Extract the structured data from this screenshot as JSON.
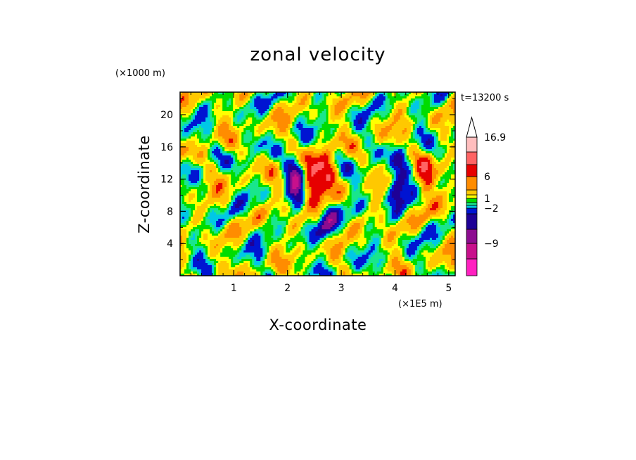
{
  "chart_data": {
    "type": "heatmap",
    "title": "zonal velocity",
    "xlabel": "X-coordinate",
    "ylabel": "Z-coordinate",
    "x_unit": "(×1E5 m)",
    "y_unit": "(×1000 m)",
    "time_label": "t=13200 s",
    "xlim": [
      0,
      5.12
    ],
    "ylim": [
      0,
      22.8
    ],
    "x_ticks": [
      "1",
      "2",
      "3",
      "4",
      "5"
    ],
    "y_ticks": [
      "4",
      "8",
      "12",
      "16",
      "20"
    ],
    "colorbar": {
      "labels": [
        "16.9",
        "6",
        "1",
        "-2",
        "-9"
      ],
      "levels": [
        -16,
        -12,
        -9,
        -6,
        -4,
        -2,
        -1,
        0,
        1,
        2,
        4,
        6,
        9,
        12,
        16.9
      ],
      "colors": [
        "#ff20c0",
        "#c8108c",
        "#8c0c90",
        "#1e0096",
        "#0014d2",
        "#00c8e6",
        "#19e68c",
        "#00dc00",
        "#ffff00",
        "#ffc800",
        "#ff8c00",
        "#e60000",
        "#ff6464",
        "#ffbebe"
      ],
      "extend_max": true
    },
    "features": [
      {
        "x": 2.15,
        "z": 12.0,
        "u": -8
      },
      {
        "x": 4.05,
        "z": 11.5,
        "u": -8
      },
      {
        "x": 2.75,
        "z": 7.0,
        "u": -6
      },
      {
        "x": 2.45,
        "z": 12.0,
        "u": 9
      },
      {
        "x": 4.55,
        "z": 12.0,
        "u": 6
      },
      {
        "x": 2.72,
        "z": 12.5,
        "u": 7
      }
    ]
  }
}
